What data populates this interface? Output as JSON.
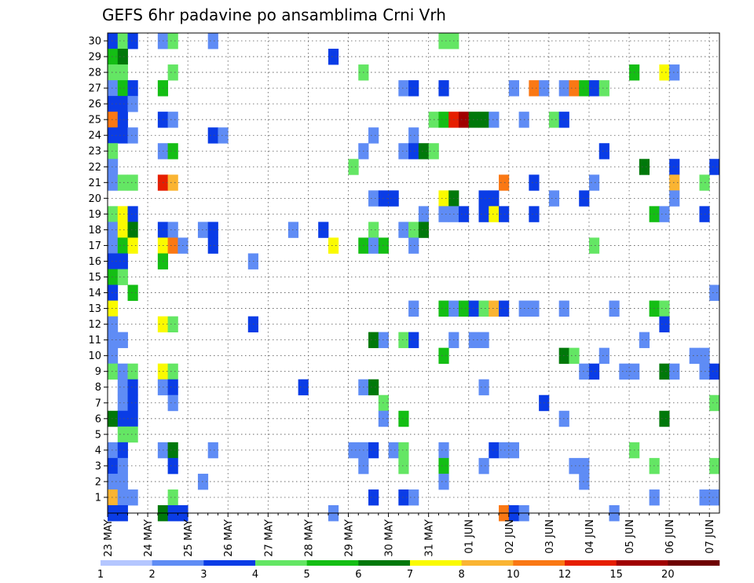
{
  "chart_data": {
    "type": "heatmap",
    "title": "GEFS 6hr padavine po ansamblima Crni Vrh",
    "xlabel": "",
    "ylabel": "",
    "x_ticks": [
      "23 MAY",
      "24 MAY",
      "25 MAY",
      "26 MAY",
      "27 MAY",
      "28 MAY",
      "29 MAY",
      "30 MAY",
      "31 MAY",
      "01 JUN",
      "02 JUN",
      "03 JUN",
      "04 JUN",
      "05 JUN",
      "06 JUN",
      "07 JUN"
    ],
    "y_ticks": [
      1,
      2,
      3,
      4,
      5,
      6,
      7,
      8,
      9,
      10,
      11,
      12,
      13,
      14,
      15,
      16,
      17,
      18,
      19,
      20,
      21,
      22,
      23,
      24,
      25,
      26,
      27,
      28,
      29,
      30
    ],
    "ylim": [
      0,
      30
    ],
    "grid": "dotted",
    "colorbar": {
      "labels": [
        "1",
        "2",
        "3",
        "4",
        "5",
        "6",
        "7",
        "8",
        "10",
        "12",
        "15",
        "20"
      ],
      "colors": [
        "#b4c6ff",
        "#5f8cf5",
        "#0a3ce6",
        "#64e664",
        "#14be14",
        "#00780a",
        "#fafa00",
        "#fab432",
        "#fa7814",
        "#e61e00",
        "#a00000",
        "#6e0000"
      ]
    },
    "cells": [
      [
        0,
        30,
        2
      ],
      [
        1,
        30,
        3
      ],
      [
        2,
        30,
        2
      ],
      [
        5,
        30,
        1
      ],
      [
        6,
        30,
        3
      ],
      [
        10,
        30,
        1
      ],
      [
        33,
        30,
        3
      ],
      [
        34,
        30,
        3
      ],
      [
        0,
        29,
        4
      ],
      [
        1,
        29,
        5
      ],
      [
        22,
        29,
        2
      ],
      [
        0,
        28,
        3
      ],
      [
        1,
        28,
        3
      ],
      [
        6,
        28,
        3
      ],
      [
        25,
        28,
        3
      ],
      [
        52,
        28,
        4
      ],
      [
        55,
        28,
        6
      ],
      [
        56,
        28,
        1
      ],
      [
        0,
        27,
        1
      ],
      [
        1,
        27,
        4
      ],
      [
        2,
        27,
        2
      ],
      [
        5,
        27,
        4
      ],
      [
        29,
        27,
        1
      ],
      [
        30,
        27,
        2
      ],
      [
        33,
        27,
        2
      ],
      [
        40,
        27,
        1
      ],
      [
        42,
        27,
        8
      ],
      [
        43,
        27,
        1
      ],
      [
        45,
        27,
        1
      ],
      [
        46,
        27,
        8
      ],
      [
        47,
        27,
        4
      ],
      [
        48,
        27,
        2
      ],
      [
        49,
        27,
        3
      ],
      [
        0,
        26,
        2
      ],
      [
        1,
        26,
        2
      ],
      [
        2,
        26,
        1
      ],
      [
        0,
        25,
        8
      ],
      [
        1,
        25,
        2
      ],
      [
        5,
        25,
        2
      ],
      [
        6,
        25,
        1
      ],
      [
        32,
        25,
        3
      ],
      [
        33,
        25,
        4
      ],
      [
        34,
        25,
        9
      ],
      [
        35,
        25,
        10
      ],
      [
        36,
        25,
        5
      ],
      [
        37,
        25,
        5
      ],
      [
        38,
        25,
        1
      ],
      [
        41,
        25,
        1
      ],
      [
        44,
        25,
        3
      ],
      [
        45,
        25,
        2
      ],
      [
        0,
        24,
        2
      ],
      [
        1,
        24,
        2
      ],
      [
        2,
        24,
        1
      ],
      [
        10,
        24,
        2
      ],
      [
        11,
        24,
        1
      ],
      [
        26,
        24,
        1
      ],
      [
        30,
        24,
        1
      ],
      [
        0,
        23,
        3
      ],
      [
        5,
        23,
        1
      ],
      [
        6,
        23,
        4
      ],
      [
        25,
        23,
        1
      ],
      [
        29,
        23,
        1
      ],
      [
        30,
        23,
        2
      ],
      [
        31,
        23,
        5
      ],
      [
        32,
        23,
        3
      ],
      [
        49,
        23,
        2
      ],
      [
        0,
        22,
        1
      ],
      [
        24,
        22,
        3
      ],
      [
        53,
        22,
        5
      ],
      [
        56,
        22,
        2
      ],
      [
        60,
        22,
        2
      ],
      [
        0,
        21,
        1
      ],
      [
        1,
        21,
        3
      ],
      [
        2,
        21,
        3
      ],
      [
        5,
        21,
        9
      ],
      [
        6,
        21,
        7
      ],
      [
        39,
        21,
        8
      ],
      [
        42,
        21,
        2
      ],
      [
        48,
        21,
        1
      ],
      [
        56,
        21,
        7
      ],
      [
        59,
        21,
        3
      ],
      [
        26,
        20,
        1
      ],
      [
        27,
        20,
        2
      ],
      [
        28,
        20,
        2
      ],
      [
        33,
        20,
        6
      ],
      [
        34,
        20,
        5
      ],
      [
        37,
        20,
        2
      ],
      [
        38,
        20,
        2
      ],
      [
        44,
        20,
        1
      ],
      [
        47,
        20,
        2
      ],
      [
        56,
        20,
        1
      ],
      [
        0,
        19,
        3
      ],
      [
        1,
        19,
        6
      ],
      [
        2,
        19,
        2
      ],
      [
        31,
        19,
        1
      ],
      [
        33,
        19,
        1
      ],
      [
        34,
        19,
        1
      ],
      [
        35,
        19,
        2
      ],
      [
        37,
        19,
        2
      ],
      [
        38,
        19,
        6
      ],
      [
        39,
        19,
        2
      ],
      [
        42,
        19,
        2
      ],
      [
        54,
        19,
        4
      ],
      [
        55,
        19,
        1
      ],
      [
        59,
        19,
        2
      ],
      [
        0,
        18,
        1
      ],
      [
        1,
        18,
        6
      ],
      [
        2,
        18,
        5
      ],
      [
        5,
        18,
        2
      ],
      [
        6,
        18,
        1
      ],
      [
        9,
        18,
        1
      ],
      [
        10,
        18,
        2
      ],
      [
        18,
        18,
        1
      ],
      [
        21,
        18,
        2
      ],
      [
        26,
        18,
        3
      ],
      [
        29,
        18,
        1
      ],
      [
        30,
        18,
        3
      ],
      [
        31,
        18,
        5
      ],
      [
        0,
        17,
        1
      ],
      [
        1,
        17,
        4
      ],
      [
        2,
        17,
        6
      ],
      [
        5,
        17,
        6
      ],
      [
        6,
        17,
        8
      ],
      [
        7,
        17,
        1
      ],
      [
        10,
        17,
        2
      ],
      [
        22,
        17,
        6
      ],
      [
        25,
        17,
        4
      ],
      [
        26,
        17,
        1
      ],
      [
        27,
        17,
        4
      ],
      [
        30,
        17,
        1
      ],
      [
        48,
        17,
        3
      ],
      [
        0,
        16,
        2
      ],
      [
        1,
        16,
        2
      ],
      [
        5,
        16,
        4
      ],
      [
        14,
        16,
        1
      ],
      [
        0,
        15,
        4
      ],
      [
        1,
        15,
        3
      ],
      [
        0,
        14,
        2
      ],
      [
        2,
        14,
        4
      ],
      [
        60,
        14,
        1
      ],
      [
        0,
        13,
        6
      ],
      [
        30,
        13,
        1
      ],
      [
        33,
        13,
        4
      ],
      [
        34,
        13,
        1
      ],
      [
        35,
        13,
        4
      ],
      [
        36,
        13,
        2
      ],
      [
        37,
        13,
        3
      ],
      [
        38,
        13,
        7
      ],
      [
        39,
        13,
        2
      ],
      [
        41,
        13,
        1
      ],
      [
        42,
        13,
        1
      ],
      [
        45,
        13,
        1
      ],
      [
        50,
        13,
        1
      ],
      [
        54,
        13,
        4
      ],
      [
        55,
        13,
        3
      ],
      [
        0,
        12,
        1
      ],
      [
        5,
        12,
        6
      ],
      [
        6,
        12,
        3
      ],
      [
        14,
        12,
        2
      ],
      [
        55,
        12,
        2
      ],
      [
        0,
        11,
        1
      ],
      [
        1,
        11,
        1
      ],
      [
        26,
        11,
        5
      ],
      [
        27,
        11,
        1
      ],
      [
        29,
        11,
        3
      ],
      [
        30,
        11,
        2
      ],
      [
        34,
        11,
        1
      ],
      [
        36,
        11,
        1
      ],
      [
        37,
        11,
        1
      ],
      [
        53,
        11,
        1
      ],
      [
        0,
        10,
        1
      ],
      [
        33,
        10,
        4
      ],
      [
        45,
        10,
        5
      ],
      [
        46,
        10,
        3
      ],
      [
        49,
        10,
        1
      ],
      [
        58,
        10,
        1
      ],
      [
        59,
        10,
        1
      ],
      [
        0,
        9,
        3
      ],
      [
        1,
        9,
        1
      ],
      [
        2,
        9,
        3
      ],
      [
        5,
        9,
        6
      ],
      [
        6,
        9,
        3
      ],
      [
        47,
        9,
        1
      ],
      [
        48,
        9,
        2
      ],
      [
        51,
        9,
        1
      ],
      [
        52,
        9,
        1
      ],
      [
        55,
        9,
        5
      ],
      [
        56,
        9,
        1
      ],
      [
        59,
        9,
        1
      ],
      [
        60,
        9,
        2
      ],
      [
        1,
        8,
        1
      ],
      [
        2,
        8,
        2
      ],
      [
        5,
        8,
        1
      ],
      [
        6,
        8,
        2
      ],
      [
        19,
        8,
        2
      ],
      [
        25,
        8,
        1
      ],
      [
        26,
        8,
        5
      ],
      [
        37,
        8,
        1
      ],
      [
        1,
        7,
        1
      ],
      [
        2,
        7,
        2
      ],
      [
        6,
        7,
        1
      ],
      [
        27,
        7,
        3
      ],
      [
        43,
        7,
        2
      ],
      [
        60,
        7,
        3
      ],
      [
        0,
        6,
        5
      ],
      [
        1,
        6,
        2
      ],
      [
        2,
        6,
        2
      ],
      [
        27,
        6,
        1
      ],
      [
        29,
        6,
        4
      ],
      [
        45,
        6,
        1
      ],
      [
        55,
        6,
        5
      ],
      [
        1,
        5,
        3
      ],
      [
        2,
        5,
        3
      ],
      [
        0,
        4,
        1
      ],
      [
        1,
        4,
        2
      ],
      [
        5,
        4,
        1
      ],
      [
        6,
        4,
        5
      ],
      [
        10,
        4,
        1
      ],
      [
        24,
        4,
        1
      ],
      [
        25,
        4,
        1
      ],
      [
        26,
        4,
        2
      ],
      [
        28,
        4,
        1
      ],
      [
        29,
        4,
        3
      ],
      [
        33,
        4,
        1
      ],
      [
        38,
        4,
        2
      ],
      [
        39,
        4,
        1
      ],
      [
        40,
        4,
        1
      ],
      [
        52,
        4,
        3
      ],
      [
        0,
        3,
        2
      ],
      [
        1,
        3,
        1
      ],
      [
        6,
        3,
        2
      ],
      [
        25,
        3,
        1
      ],
      [
        29,
        3,
        3
      ],
      [
        33,
        3,
        4
      ],
      [
        37,
        3,
        1
      ],
      [
        46,
        3,
        1
      ],
      [
        47,
        3,
        1
      ],
      [
        54,
        3,
        3
      ],
      [
        60,
        3,
        3
      ],
      [
        0,
        2,
        1
      ],
      [
        1,
        2,
        1
      ],
      [
        9,
        2,
        1
      ],
      [
        33,
        2,
        1
      ],
      [
        47,
        2,
        1
      ],
      [
        0,
        1,
        7
      ],
      [
        1,
        1,
        1
      ],
      [
        2,
        1,
        1
      ],
      [
        6,
        1,
        3
      ],
      [
        26,
        1,
        2
      ],
      [
        29,
        1,
        2
      ],
      [
        30,
        1,
        1
      ],
      [
        54,
        1,
        1
      ],
      [
        59,
        1,
        1
      ],
      [
        60,
        1,
        1
      ],
      [
        0,
        0,
        2
      ],
      [
        1,
        0,
        2
      ],
      [
        5,
        0,
        5
      ],
      [
        6,
        0,
        2
      ],
      [
        7,
        0,
        2
      ],
      [
        22,
        0,
        1
      ],
      [
        39,
        0,
        8
      ],
      [
        40,
        0,
        2
      ],
      [
        41,
        0,
        1
      ],
      [
        50,
        0,
        1
      ]
    ]
  }
}
